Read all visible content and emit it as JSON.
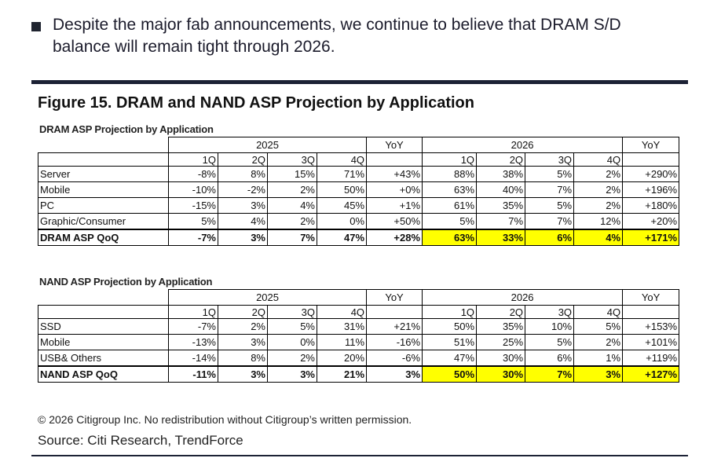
{
  "bullet": "Despite the major fab announcements, we continue to believe that DRAM S/D balance will remain tight through 2026.",
  "figure_title": "Figure 15. DRAM and NAND ASP Projection by Application",
  "dram": {
    "title": "DRAM ASP Projection by Application",
    "year1": "2025",
    "year2": "2026",
    "yoy": "YoY",
    "quarters": [
      "1Q",
      "2Q",
      "3Q",
      "4Q"
    ],
    "rows": [
      {
        "label": "Server",
        "v": [
          "-8%",
          "8%",
          "15%",
          "71%",
          "+43%",
          "88%",
          "38%",
          "5%",
          "2%",
          "+290%"
        ]
      },
      {
        "label": "Mobile",
        "v": [
          "-10%",
          "-2%",
          "2%",
          "50%",
          "+0%",
          "63%",
          "40%",
          "7%",
          "2%",
          "+196%"
        ]
      },
      {
        "label": "PC",
        "v": [
          "-15%",
          "3%",
          "4%",
          "45%",
          "+1%",
          "61%",
          "35%",
          "5%",
          "2%",
          "+180%"
        ]
      },
      {
        "label": "Graphic/Consumer",
        "v": [
          "5%",
          "4%",
          "2%",
          "0%",
          "+50%",
          "5%",
          "7%",
          "7%",
          "12%",
          "+20%"
        ]
      }
    ],
    "total": {
      "label": "DRAM ASP QoQ",
      "v": [
        "-7%",
        "3%",
        "7%",
        "47%",
        "+28%",
        "63%",
        "33%",
        "6%",
        "4%",
        "+171%"
      ]
    }
  },
  "nand": {
    "title": "NAND ASP Projection by Application",
    "year1": "2025",
    "year2": "2026",
    "yoy": "YoY",
    "quarters": [
      "1Q",
      "2Q",
      "3Q",
      "4Q"
    ],
    "rows": [
      {
        "label": "SSD",
        "v": [
          "-7%",
          "2%",
          "5%",
          "31%",
          "+21%",
          "50%",
          "35%",
          "10%",
          "5%",
          "+153%"
        ]
      },
      {
        "label": "Mobile",
        "v": [
          "-13%",
          "3%",
          "0%",
          "11%",
          "-16%",
          "51%",
          "25%",
          "5%",
          "2%",
          "+101%"
        ]
      },
      {
        "label": "USB& Others",
        "v": [
          "-14%",
          "8%",
          "2%",
          "20%",
          "-6%",
          "47%",
          "30%",
          "6%",
          "1%",
          "+119%"
        ]
      }
    ],
    "total": {
      "label": "NAND ASP QoQ",
      "v": [
        "-11%",
        "3%",
        "3%",
        "21%",
        "3%",
        "50%",
        "30%",
        "7%",
        "3%",
        "+127%"
      ]
    }
  },
  "highlight_color": "#ffff00",
  "copyright": "© 2026 Citigroup Inc. No redistribution without Citigroup’s written permission.",
  "source": "Source: Citi Research, TrendForce"
}
